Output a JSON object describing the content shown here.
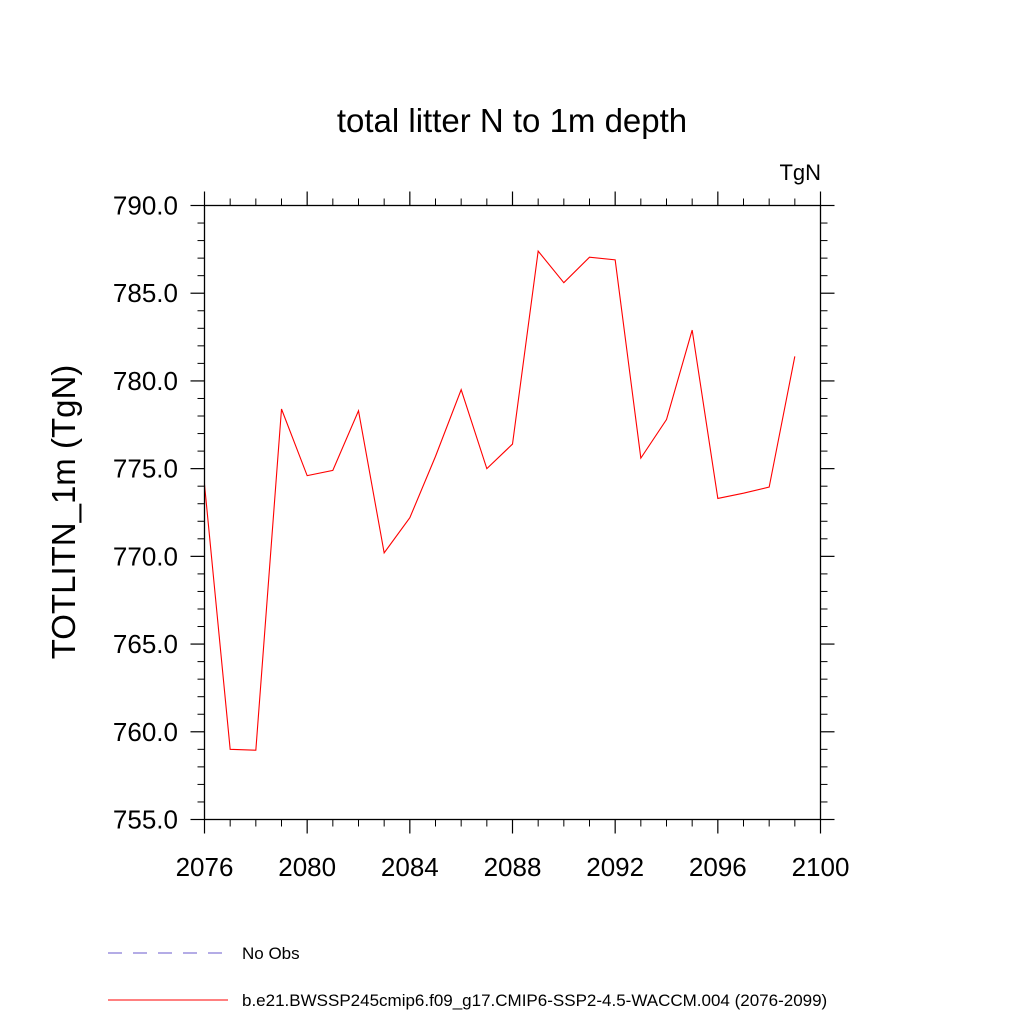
{
  "chart_data": {
    "type": "line",
    "title": "total litter N to 1m depth",
    "units_label": "TgN",
    "ylabel": "TOTLITN_1m  (TgN)",
    "xlabel": "",
    "xlim": [
      2076,
      2100
    ],
    "ylim": [
      755.0,
      790.0
    ],
    "x_ticks": [
      "2076",
      "2080",
      "2084",
      "2088",
      "2092",
      "2096",
      "2100"
    ],
    "y_ticks": [
      "755.0",
      "760.0",
      "765.0",
      "770.0",
      "775.0",
      "780.0",
      "785.0",
      "790.0"
    ],
    "grid": false,
    "legend_placement": "bottom",
    "legend": [
      {
        "label": "No Obs",
        "style": "dashed",
        "color": "#6a5acd"
      },
      {
        "label": "b.e21.BWSSP245cmip6.f09_g17.CMIP6-SSP2-4.5-WACCM.004 (2076-2099)",
        "style": "solid",
        "color": "#ff0000"
      }
    ],
    "series": [
      {
        "name": "b.e21.BWSSP245cmip6.f09_g17.CMIP6-SSP2-4.5-WACCM.004 (2076-2099)",
        "color": "#ff0000",
        "x": [
          2076,
          2077,
          2078,
          2079,
          2080,
          2081,
          2082,
          2083,
          2084,
          2085,
          2086,
          2087,
          2088,
          2089,
          2090,
          2091,
          2092,
          2093,
          2094,
          2095,
          2096,
          2097,
          2098,
          2099
        ],
        "values": [
          774.1,
          759.0,
          758.95,
          778.4,
          774.6,
          774.9,
          778.3,
          770.2,
          772.2,
          775.7,
          779.5,
          775.0,
          776.4,
          787.4,
          785.6,
          787.05,
          786.9,
          775.6,
          777.8,
          782.9,
          773.3,
          773.6,
          773.95,
          781.4
        ]
      }
    ]
  }
}
